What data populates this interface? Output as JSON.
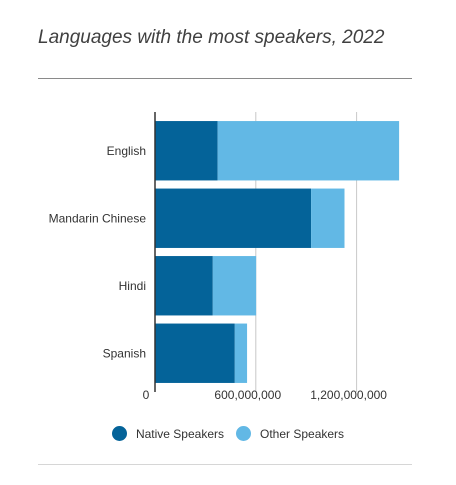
{
  "title": "Languages with the most speakers, 2022",
  "chart_data": {
    "type": "bar",
    "orientation": "horizontal",
    "stacked": true,
    "title": "Languages with the most speakers, 2022",
    "categories": [
      "English",
      "Mandarin Chinese",
      "Hindi",
      "Spanish"
    ],
    "series": [
      {
        "name": "Native Speakers",
        "color": "#046399",
        "values": [
          373000000,
          929000000,
          344000000,
          475000000
        ]
      },
      {
        "name": "Other Speakers",
        "color": "#62b8e5",
        "values": [
          1080000000,
          199000000,
          258000000,
          73000000
        ]
      }
    ],
    "xlim": [
      0,
      1500000000
    ],
    "x_ticks": [
      {
        "value": 0,
        "label": "0"
      },
      {
        "value": 600000000,
        "label": "600,000,000"
      },
      {
        "value": 1200000000,
        "label": "1,200,000,000"
      }
    ],
    "grid": true,
    "legend_position": "bottom"
  }
}
